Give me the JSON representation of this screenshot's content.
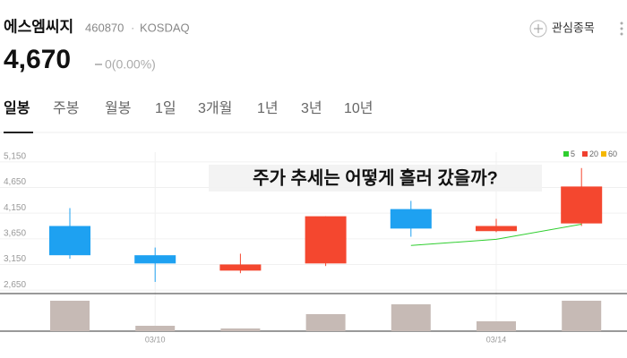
{
  "header": {
    "name": "에스엠씨지",
    "code": "460870",
    "dot": "·",
    "market": "KOSDAQ",
    "watch": "관심종목",
    "price": "4,670",
    "change": "0(0.00%)"
  },
  "tabs": [
    "일봉",
    "주봉",
    "월봉",
    "1일",
    "3개월",
    "1년",
    "3년",
    "10년"
  ],
  "chart_data": {
    "type": "candlestick",
    "annotation": "주가 추세는 어떻게 흘러 갔을까?",
    "categories": [
      null,
      "03/10",
      null,
      null,
      null,
      "03/14",
      null
    ],
    "open": [
      3900,
      3330,
      3030,
      3170,
      4230,
      3800,
      3950
    ],
    "high": [
      4250,
      3480,
      3360,
      4090,
      4390,
      4040,
      5030
    ],
    "low": [
      3260,
      2810,
      2980,
      3120,
      3690,
      3780,
      3900
    ],
    "close": [
      3330,
      3170,
      3150,
      4090,
      3850,
      3900,
      4670
    ],
    "up_color": "#f4472f",
    "down_color": "#1ea1f1",
    "ylim": [
      2600,
      5340
    ],
    "yticks": [
      {
        "value": 2650,
        "label": "2,650"
      },
      {
        "value": 3150,
        "label": "3,150"
      },
      {
        "value": 3650,
        "label": "3,650"
      },
      {
        "value": 4150,
        "label": "4,150"
      },
      {
        "value": 4650,
        "label": "4,650"
      },
      {
        "value": 5150,
        "label": "5,150"
      }
    ],
    "grid": true,
    "series": [
      {
        "name": "5",
        "color": "#2fce2f",
        "values": [
          null,
          null,
          null,
          null,
          3520,
          3640,
          3935
        ]
      },
      {
        "name": "20",
        "color": "#f04030",
        "values": [
          null,
          null,
          null,
          null,
          null,
          null,
          null
        ]
      },
      {
        "name": "60",
        "color": "#f5b800",
        "values": [
          null,
          null,
          null,
          null,
          null,
          null,
          null
        ]
      }
    ],
    "legend": "upper right",
    "volume": {
      "values": [
        34,
        6,
        3,
        19,
        30,
        11,
        34
      ],
      "color": "#c6bab5",
      "ylim": [
        0,
        40
      ]
    }
  }
}
